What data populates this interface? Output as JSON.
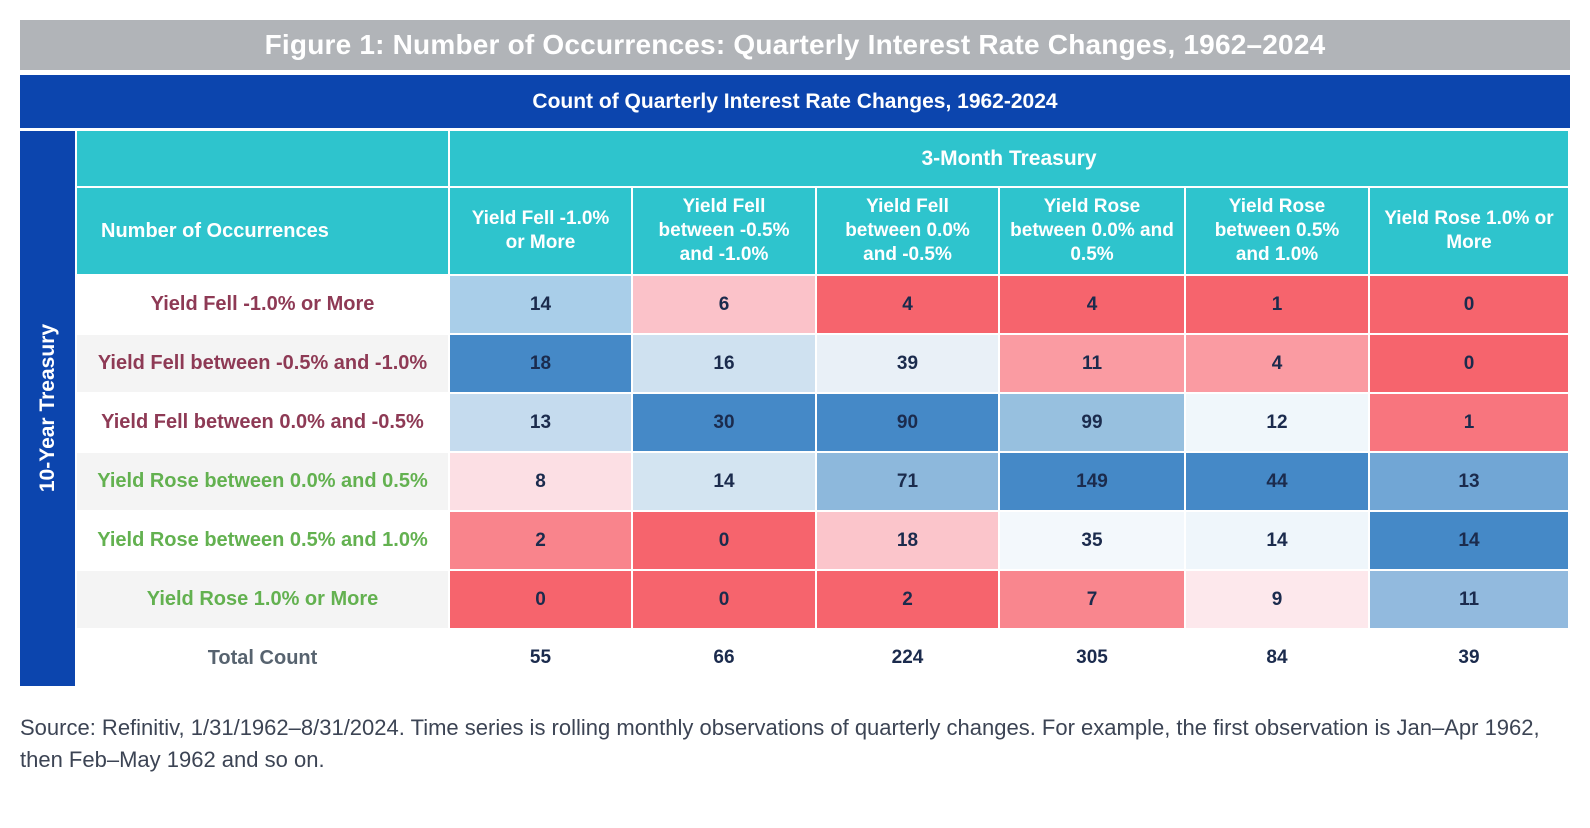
{
  "figure": {
    "title": "Figure 1: Number of Occurrences: Quarterly Interest Rate Changes, 1962–2024",
    "source_text": "Source: Refinitiv, 1/31/1962–8/31/2024. Time series is rolling monthly observations of quarterly changes. For example, the first observation is Jan–Apr 1962, then Feb–May 1962 and so on."
  },
  "colors": {
    "title_bar_bg": "#b1b4b8",
    "banner_blue": "#0c45ae",
    "header_teal": "#2ec4cd",
    "fell_label": "#8e3a55",
    "rose_label": "#63b150",
    "number_navy": "#1b2b4d",
    "heat_strong_blue": "#4589c7",
    "heat_strong_red": "#f6646d"
  },
  "chart_data": {
    "type": "heatmap",
    "title": "Count of Quarterly Interest Rate Changes, 1962-2024",
    "column_group_label": "3-Month Treasury",
    "row_group_label": "10-Year Treasury",
    "corner_header": "Number of Occurrences",
    "columns": [
      "Yield Fell -1.0% or More",
      "Yield Fell between -0.5% and -1.0%",
      "Yield Fell between 0.0% and -0.5%",
      "Yield Rose between 0.0% and 0.5%",
      "Yield Rose between 0.5% and 1.0%",
      "Yield Rose 1.0% or More"
    ],
    "rows": [
      {
        "label": "Yield Fell -1.0% or More",
        "direction": "fell",
        "values": [
          14,
          6,
          4,
          4,
          1,
          0
        ],
        "cell_colors": [
          "#a9cee9",
          "#fbc2c9",
          "#f6646d",
          "#f6646d",
          "#f6646d",
          "#f6646d"
        ]
      },
      {
        "label": "Yield Fell between -0.5% and -1.0%",
        "direction": "fell",
        "values": [
          18,
          16,
          39,
          11,
          4,
          0
        ],
        "cell_colors": [
          "#4589c7",
          "#cfe1f0",
          "#e9f0f7",
          "#fa9ba2",
          "#fa9ba2",
          "#f6646d"
        ]
      },
      {
        "label": "Yield Fell between 0.0% and -0.5%",
        "direction": "fell",
        "values": [
          13,
          30,
          90,
          99,
          12,
          1
        ],
        "cell_colors": [
          "#c5dbee",
          "#4589c7",
          "#4589c7",
          "#97c0df",
          "#f0f7fb",
          "#f8757e"
        ]
      },
      {
        "label": "Yield Rose between 0.0% and 0.5%",
        "direction": "rose",
        "values": [
          8,
          14,
          71,
          149,
          44,
          13
        ],
        "cell_colors": [
          "#fcdfe4",
          "#d3e4f1",
          "#8db8dc",
          "#4589c7",
          "#4589c7",
          "#71a6d5"
        ]
      },
      {
        "label": "Yield Rose between 0.5% and 1.0%",
        "direction": "rose",
        "values": [
          2,
          0,
          18,
          35,
          14,
          14
        ],
        "cell_colors": [
          "#f9848c",
          "#f6646d",
          "#fbc5cb",
          "#f3f8fc",
          "#eff6fb",
          "#4589c7"
        ]
      },
      {
        "label": "Yield Rose 1.0% or More",
        "direction": "rose",
        "values": [
          0,
          0,
          2,
          7,
          9,
          11
        ],
        "cell_colors": [
          "#f6646d",
          "#f6646d",
          "#f6646d",
          "#f9868e",
          "#fde8ec",
          "#92bade"
        ]
      }
    ],
    "total": {
      "label": "Total Count",
      "values": [
        55,
        66,
        224,
        305,
        84,
        39
      ]
    }
  }
}
